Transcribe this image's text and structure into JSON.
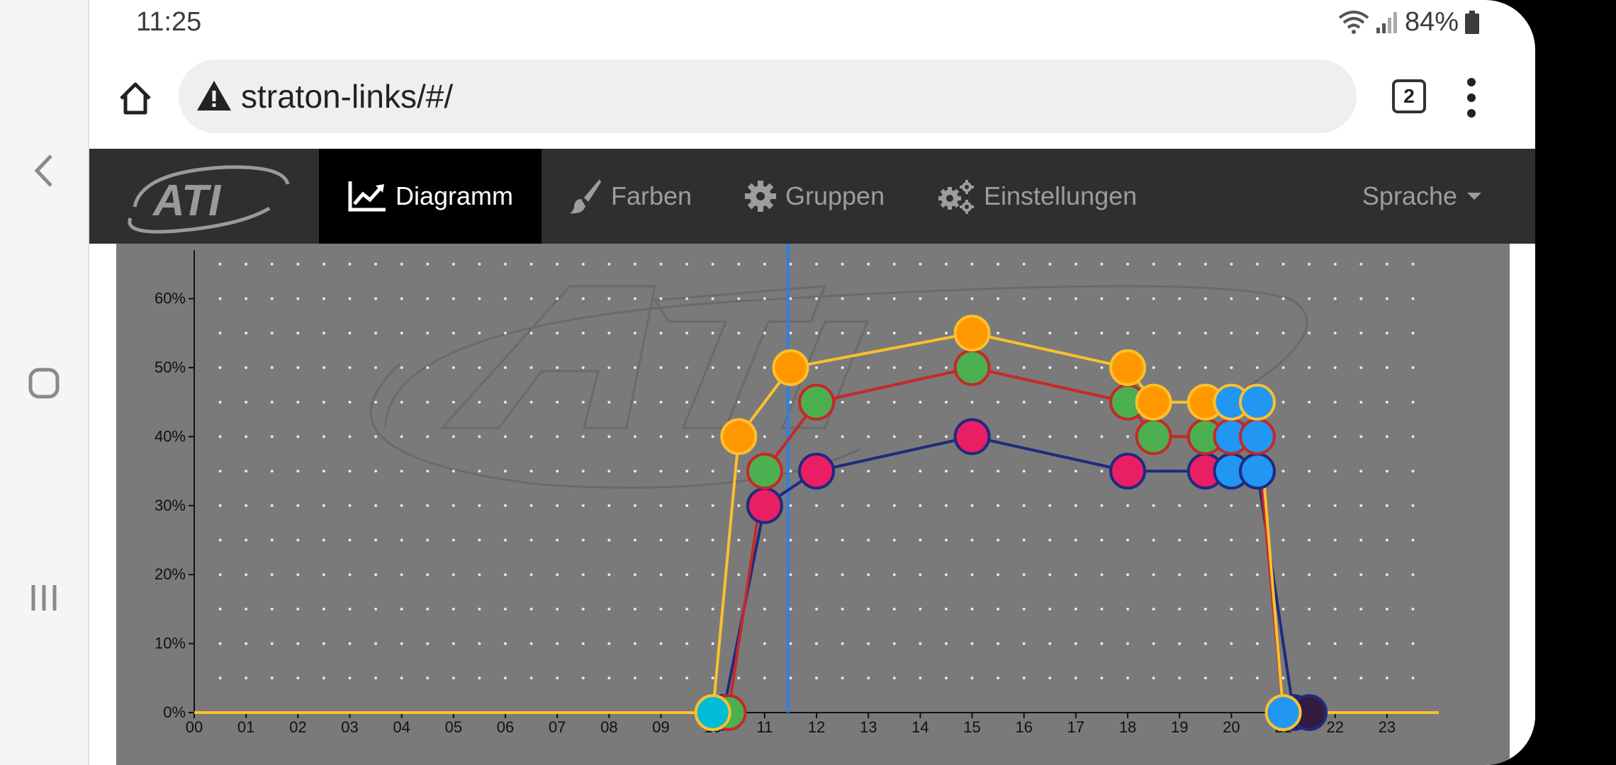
{
  "status_bar": {
    "time": "11:25",
    "battery": "84%"
  },
  "browser": {
    "url": "straton-links/#/",
    "tab_count": "2"
  },
  "nav": {
    "logo_text": "ATI",
    "items": [
      {
        "label": "Diagramm",
        "icon": "chart-line-icon",
        "active": true
      },
      {
        "label": "Farben",
        "icon": "paint-brush-icon",
        "active": false
      },
      {
        "label": "Gruppen",
        "icon": "gear-icon",
        "active": false
      },
      {
        "label": "Einstellungen",
        "icon": "gears-icon",
        "active": false
      }
    ],
    "language_label": "Sprache"
  },
  "chart_data": {
    "type": "line",
    "x_ticks": [
      "00",
      "01",
      "02",
      "03",
      "04",
      "05",
      "06",
      "07",
      "08",
      "09",
      "10",
      "11",
      "12",
      "13",
      "14",
      "15",
      "16",
      "17",
      "18",
      "19",
      "20",
      "21",
      "22",
      "23"
    ],
    "y_ticks": [
      "0%",
      "10%",
      "20%",
      "30%",
      "40%",
      "50%",
      "60%"
    ],
    "xlim": [
      0,
      24
    ],
    "ylim": [
      0,
      67
    ],
    "current_time_marker": 11.45,
    "grid": "dotted",
    "series": [
      {
        "line_color": "#1f2a80",
        "points": [
          {
            "x": 10.2,
            "y": 0,
            "fill": "#37473a"
          },
          {
            "x": 11.0,
            "y": 30,
            "fill": "#e91e63"
          },
          {
            "x": 12.0,
            "y": 35,
            "fill": "#e91e63"
          },
          {
            "x": 15.0,
            "y": 40,
            "fill": "#e91e63"
          },
          {
            "x": 18.0,
            "y": 35,
            "fill": "#e91e63"
          },
          {
            "x": 19.5,
            "y": 35,
            "fill": "#e91e63"
          },
          {
            "x": 20.0,
            "y": 35,
            "fill": "#2196f3"
          },
          {
            "x": 20.5,
            "y": 35,
            "fill": "#2196f3"
          },
          {
            "x": 21.2,
            "y": 0,
            "fill": "#311b3f"
          },
          {
            "x": 21.5,
            "y": 0,
            "fill": "#311b3f"
          },
          {
            "x": 24.0,
            "y": 0,
            "fill": "none"
          }
        ]
      },
      {
        "line_color": "#c62828",
        "points": [
          {
            "x": 10.3,
            "y": 0,
            "fill": "#4caf50"
          },
          {
            "x": 11.0,
            "y": 35,
            "fill": "#4caf50"
          },
          {
            "x": 12.0,
            "y": 45,
            "fill": "#4caf50"
          },
          {
            "x": 15.0,
            "y": 50,
            "fill": "#4caf50"
          },
          {
            "x": 18.0,
            "y": 45,
            "fill": "#4caf50"
          },
          {
            "x": 18.5,
            "y": 40,
            "fill": "#4caf50"
          },
          {
            "x": 19.5,
            "y": 40,
            "fill": "#4caf50"
          },
          {
            "x": 20.0,
            "y": 40,
            "fill": "#2196f3"
          },
          {
            "x": 20.5,
            "y": 40,
            "fill": "#2196f3"
          },
          {
            "x": 21.0,
            "y": 0,
            "fill": "none"
          },
          {
            "x": 24.0,
            "y": 0,
            "fill": "none"
          }
        ]
      },
      {
        "line_color": "#fbc02d",
        "points": [
          {
            "x": 0,
            "y": 0,
            "fill": "none"
          },
          {
            "x": 10.0,
            "y": 0,
            "fill": "#00bcd4"
          },
          {
            "x": 10.5,
            "y": 40,
            "fill": "#ff9800"
          },
          {
            "x": 11.5,
            "y": 50,
            "fill": "#ff9800"
          },
          {
            "x": 15.0,
            "y": 55,
            "fill": "#ff9800"
          },
          {
            "x": 18.0,
            "y": 50,
            "fill": "#ff9800"
          },
          {
            "x": 18.5,
            "y": 45,
            "fill": "#ff9800"
          },
          {
            "x": 19.5,
            "y": 45,
            "fill": "#ff9800"
          },
          {
            "x": 20.0,
            "y": 45,
            "fill": "#2196f3"
          },
          {
            "x": 20.5,
            "y": 45,
            "fill": "#2196f3"
          },
          {
            "x": 21.0,
            "y": 0,
            "fill": "#2196f3"
          },
          {
            "x": 24.0,
            "y": 0,
            "fill": "none"
          }
        ]
      }
    ]
  }
}
